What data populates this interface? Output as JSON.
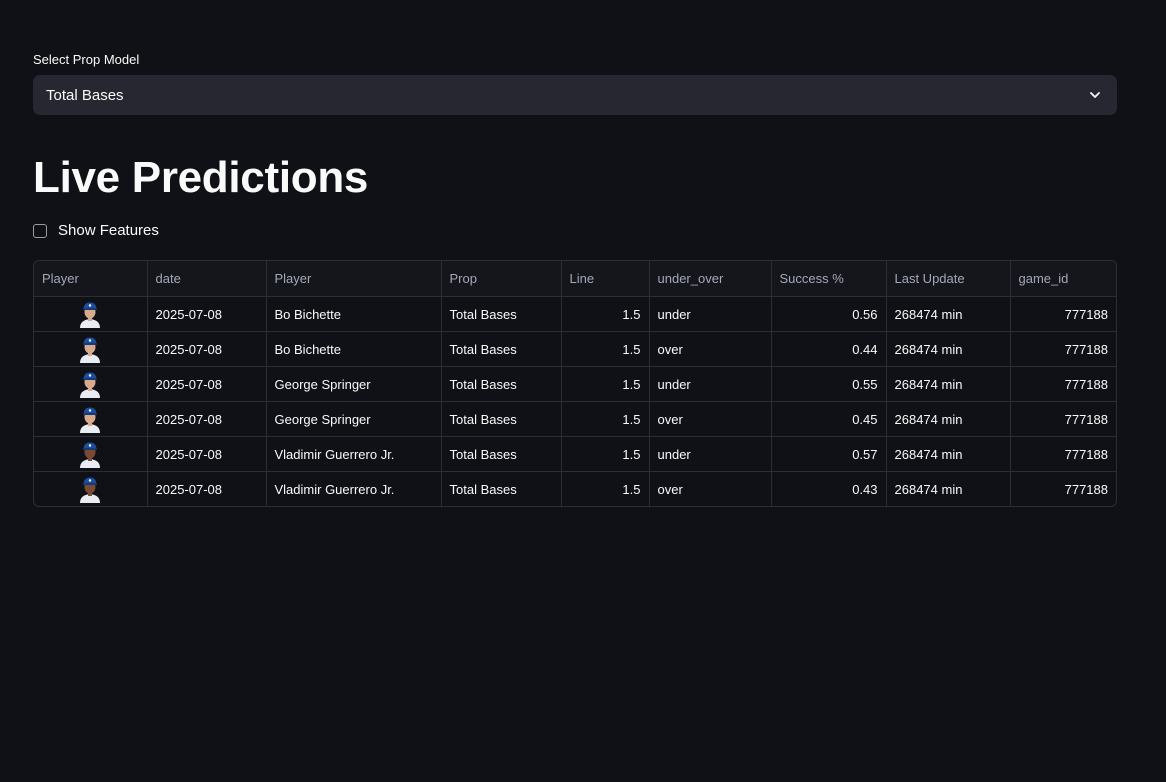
{
  "prop_select": {
    "label": "Select Prop Model",
    "value": "Total Bases",
    "icon": "chevron-down-icon"
  },
  "page_title": "Live Predictions",
  "show_features": {
    "label": "Show Features",
    "checked": false
  },
  "table": {
    "columns": [
      "Player",
      "date",
      "Player",
      "Prop",
      "Line",
      "under_over",
      "Success %",
      "Last Update",
      "game_id"
    ],
    "rows": [
      {
        "headshot": "bo-bichette-headshot",
        "date": "2025-07-08",
        "player": "Bo Bichette",
        "prop": "Total Bases",
        "line": "1.5",
        "under_over": "under",
        "success": "0.56",
        "last_update": "268474 min",
        "game_id": "777188"
      },
      {
        "headshot": "bo-bichette-headshot",
        "date": "2025-07-08",
        "player": "Bo Bichette",
        "prop": "Total Bases",
        "line": "1.5",
        "under_over": "over",
        "success": "0.44",
        "last_update": "268474 min",
        "game_id": "777188"
      },
      {
        "headshot": "george-springer-headshot",
        "date": "2025-07-08",
        "player": "George Springer",
        "prop": "Total Bases",
        "line": "1.5",
        "under_over": "under",
        "success": "0.55",
        "last_update": "268474 min",
        "game_id": "777188"
      },
      {
        "headshot": "george-springer-headshot",
        "date": "2025-07-08",
        "player": "George Springer",
        "prop": "Total Bases",
        "line": "1.5",
        "under_over": "over",
        "success": "0.45",
        "last_update": "268474 min",
        "game_id": "777188"
      },
      {
        "headshot": "vladimir-guerrero-headshot",
        "date": "2025-07-08",
        "player": "Vladimir Guerrero Jr.",
        "prop": "Total Bases",
        "line": "1.5",
        "under_over": "under",
        "success": "0.57",
        "last_update": "268474 min",
        "game_id": "777188"
      },
      {
        "headshot": "vladimir-guerrero-headshot",
        "date": "2025-07-08",
        "player": "Vladimir Guerrero Jr.",
        "prop": "Total Bases",
        "line": "1.5",
        "under_over": "over",
        "success": "0.43",
        "last_update": "268474 min",
        "game_id": "777188"
      }
    ]
  },
  "colors": {
    "background": "#0f1116",
    "select_bg": "#262730",
    "text": "#fafafa",
    "header_text": "#a3a8b8",
    "border": "#2c2e36",
    "cap_blue": "#1d4e9e",
    "skin_light": "#d9a98b",
    "skin_dark": "#7a4a32"
  }
}
